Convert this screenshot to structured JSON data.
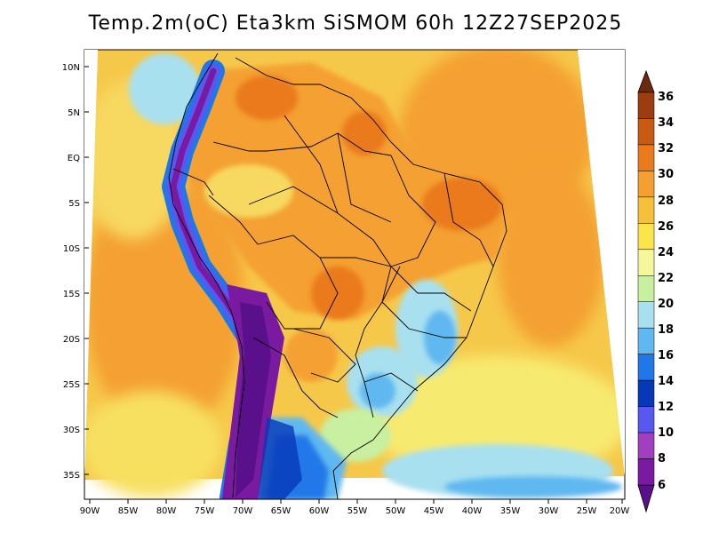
{
  "title": "Temp.2m(oC) Eta3km SiSMOM 60h 12Z27SEP2025",
  "lat_labels": [
    "10N",
    "5N",
    "EQ",
    "5S",
    "10S",
    "15S",
    "20S",
    "25S",
    "30S",
    "35S"
  ],
  "lat_values": [
    10,
    5,
    0,
    -5,
    -10,
    -15,
    -20,
    -25,
    -30,
    -35
  ],
  "lon_labels": [
    "90W",
    "85W",
    "80W",
    "75W",
    "70W",
    "65W",
    "60W",
    "55W",
    "50W",
    "45W",
    "40W",
    "35W",
    "30W",
    "25W",
    "20W"
  ],
  "lon_values": [
    -90,
    -85,
    -80,
    -75,
    -70,
    -65,
    -60,
    -55,
    -50,
    -45,
    -40,
    -35,
    -30,
    -25,
    -20
  ],
  "colorbar": {
    "labels": [
      "36",
      "34",
      "32",
      "30",
      "28",
      "26",
      "24",
      "22",
      "20",
      "18",
      "16",
      "14",
      "12",
      "10",
      "8",
      "6"
    ],
    "colors": [
      "#6b2a0e",
      "#9c3d10",
      "#c85a14",
      "#ea7a1e",
      "#f4a030",
      "#f7c03a",
      "#fbe54a",
      "#f6f79a",
      "#c8f0a0",
      "#a8e0f0",
      "#60b8f0",
      "#2078e8",
      "#0838b8",
      "#5858f0",
      "#a040c0",
      "#7a1aa0",
      "#5a108a"
    ]
  }
}
